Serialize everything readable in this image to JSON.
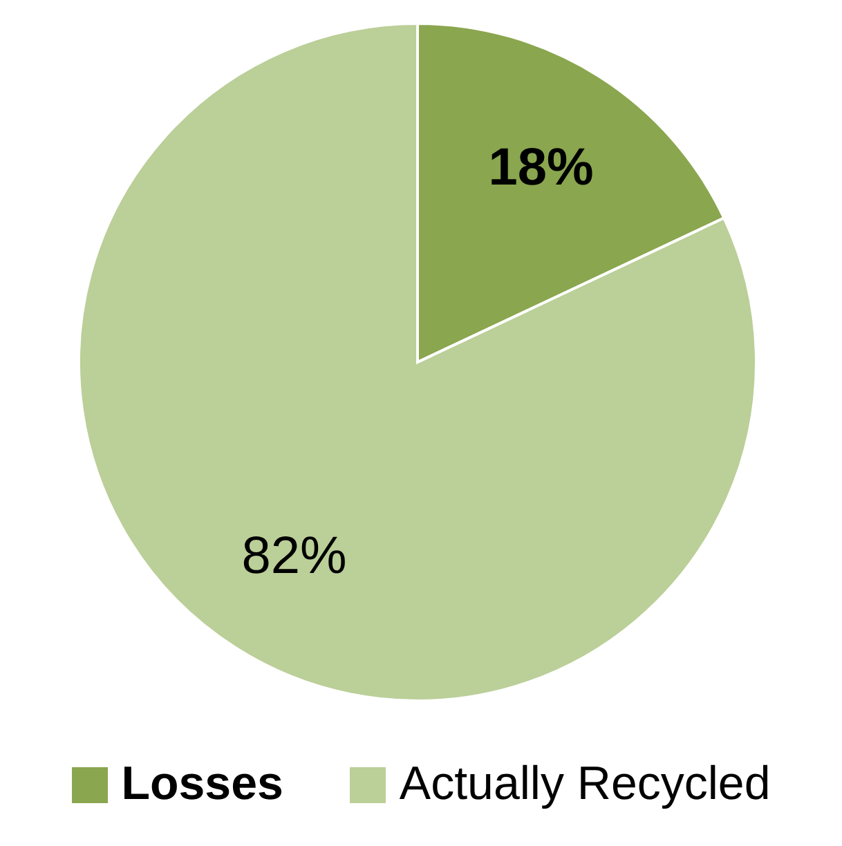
{
  "chart_data": {
    "type": "pie",
    "categories": [
      "Losses",
      "Actually Recycled"
    ],
    "values": [
      18,
      82
    ],
    "colors": [
      "#8aa64e",
      "#bbcf98"
    ],
    "value_labels": [
      "18%",
      "82%"
    ],
    "legend": "bottom"
  }
}
